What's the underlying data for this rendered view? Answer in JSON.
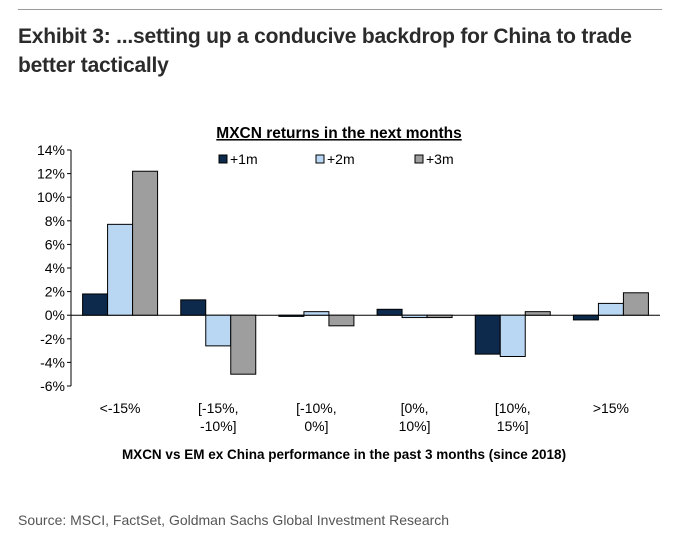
{
  "exhibit": {
    "title": "Exhibit 3: ...setting up a conducive backdrop for China to trade better tactically"
  },
  "source_note": "Source: MSCI, FactSet, Goldman Sachs Global Investment Research",
  "chart_data": {
    "type": "bar",
    "title": "MXCN returns in the next months",
    "xlabel": "MXCN vs EM ex China performance in the past 3 months (since 2018)",
    "ylabel": "",
    "categories": [
      [
        "<-15%"
      ],
      [
        "[-15%,",
        "-10%]"
      ],
      [
        "[-10%,",
        "0%]"
      ],
      [
        "[0%,",
        "10%]"
      ],
      [
        "[10%,",
        "15%]"
      ],
      [
        ">15%"
      ]
    ],
    "ylim": [
      -6,
      14
    ],
    "yticks": [
      14,
      12,
      10,
      8,
      6,
      4,
      2,
      0,
      -2,
      -4,
      -6
    ],
    "ytick_labels": [
      "14%",
      "12%",
      "10%",
      "8%",
      "6%",
      "4%",
      "2%",
      "0%",
      "-2%",
      "-4%",
      "-6%"
    ],
    "series": [
      {
        "name": "+1m",
        "color": "#0d2a4c",
        "values": [
          1.8,
          1.3,
          -0.1,
          0.5,
          -3.3,
          -0.4
        ]
      },
      {
        "name": "+2m",
        "color": "#b9d7f3",
        "values": [
          7.7,
          -2.6,
          0.3,
          -0.2,
          -3.5,
          1.0
        ]
      },
      {
        "name": "+3m",
        "color": "#9e9e9e",
        "values": [
          12.2,
          -5.0,
          -0.9,
          -0.2,
          0.3,
          1.9
        ]
      }
    ],
    "legend_position": "top",
    "grid": false
  }
}
